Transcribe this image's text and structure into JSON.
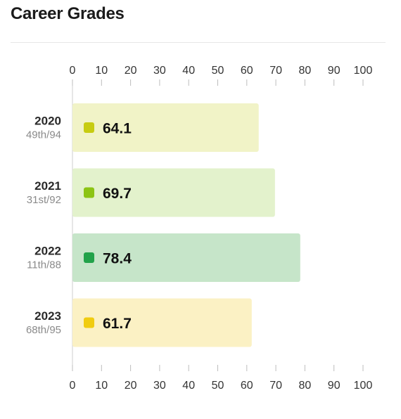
{
  "header": {
    "title": "Career Grades"
  },
  "chart_data": {
    "type": "bar",
    "orientation": "horizontal",
    "title": "Career Grades",
    "xlim": [
      0,
      100
    ],
    "ticks": [
      0,
      10,
      20,
      30,
      40,
      50,
      60,
      70,
      80,
      90,
      100
    ],
    "tick_labels": [
      "0",
      "10",
      "20",
      "30",
      "40",
      "50",
      "60",
      "70",
      "80",
      "90",
      "100"
    ],
    "axis_placement": "top-and-bottom",
    "grid": false,
    "categories": [
      "2020",
      "2021",
      "2022",
      "2023"
    ],
    "ranks": [
      "49th/94",
      "31st/92",
      "11th/88",
      "68th/95"
    ],
    "values": [
      64.1,
      69.7,
      78.4,
      61.7
    ],
    "value_labels": [
      "64.1",
      "69.7",
      "78.4",
      "61.7"
    ],
    "marker_colors": [
      "#c7cc12",
      "#8cc414",
      "#22a24a",
      "#f0cc10"
    ],
    "bar_colors": [
      "#f1f3c7",
      "#e3f2cc",
      "#c6e5c9",
      "#fbf1c4"
    ]
  }
}
